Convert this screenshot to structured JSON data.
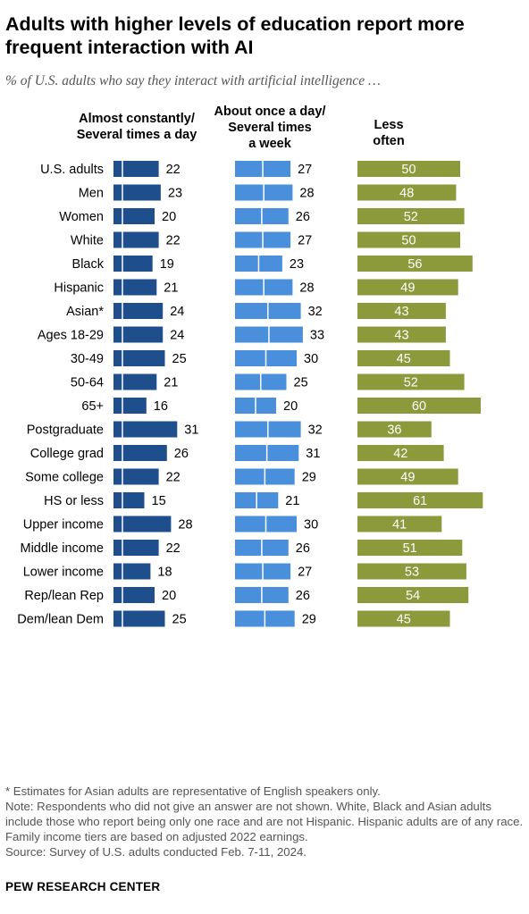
{
  "title": "Adults with higher levels of education report more frequent interaction with AI",
  "subtitle": "% of U.S. adults who say they interact with artificial intelligence …",
  "column_headers": {
    "col1": [
      "Almost constantly/",
      "Several times a day"
    ],
    "col2": [
      "About once a day/",
      "Several times",
      "a week"
    ],
    "col3": [
      "Less often"
    ]
  },
  "colors": {
    "almost_constantly": "#1f4e8c",
    "about_once_a_day": "#4a8fdc",
    "less_often": "#8c9a3c"
  },
  "chart_data": {
    "type": "bar",
    "title": "Adults with higher levels of education report more frequent interaction with AI",
    "subtitle": "% of U.S. adults who say they interact with artificial intelligence …",
    "categories": [
      "U.S. adults",
      "Men",
      "Women",
      "White",
      "Black",
      "Hispanic",
      "Asian*",
      "Ages 18-29",
      "30-49",
      "50-64",
      "65+",
      "Postgraduate",
      "College grad",
      "Some college",
      "HS or less",
      "Upper income",
      "Middle income",
      "Lower income",
      "Rep/lean Rep",
      "Dem/lean Dem"
    ],
    "groups": [
      [
        0
      ],
      [
        1,
        2
      ],
      [
        3,
        4,
        5,
        6
      ],
      [
        7,
        8,
        9,
        10
      ],
      [
        11,
        12,
        13,
        14
      ],
      [
        15,
        16,
        17
      ],
      [
        18,
        19
      ]
    ],
    "series": [
      {
        "name": "Almost constantly/Several times a day",
        "values": [
          22,
          23,
          20,
          22,
          19,
          21,
          24,
          24,
          25,
          21,
          16,
          31,
          26,
          22,
          15,
          28,
          22,
          18,
          20,
          25
        ]
      },
      {
        "name": "About once a day/Several times a week",
        "values": [
          27,
          28,
          26,
          27,
          23,
          28,
          32,
          33,
          30,
          25,
          20,
          32,
          31,
          29,
          21,
          30,
          26,
          27,
          26,
          29
        ]
      },
      {
        "name": "Less often",
        "values": [
          50,
          48,
          52,
          50,
          56,
          49,
          43,
          43,
          45,
          52,
          60,
          36,
          42,
          49,
          61,
          41,
          51,
          53,
          54,
          45
        ]
      }
    ]
  },
  "notes": {
    "asterisk": "* Estimates for Asian adults are representative of English speakers only.",
    "note": "Note: Respondents who did not give an answer are not shown. White, Black and Asian adults include those who report being only one race and are not Hispanic. Hispanic adults are of any race. Family income tiers are based on adjusted 2022 earnings.",
    "source": "Source: Survey of U.S. adults conducted Feb. 7-11, 2024."
  },
  "brand": "PEW RESEARCH CENTER"
}
